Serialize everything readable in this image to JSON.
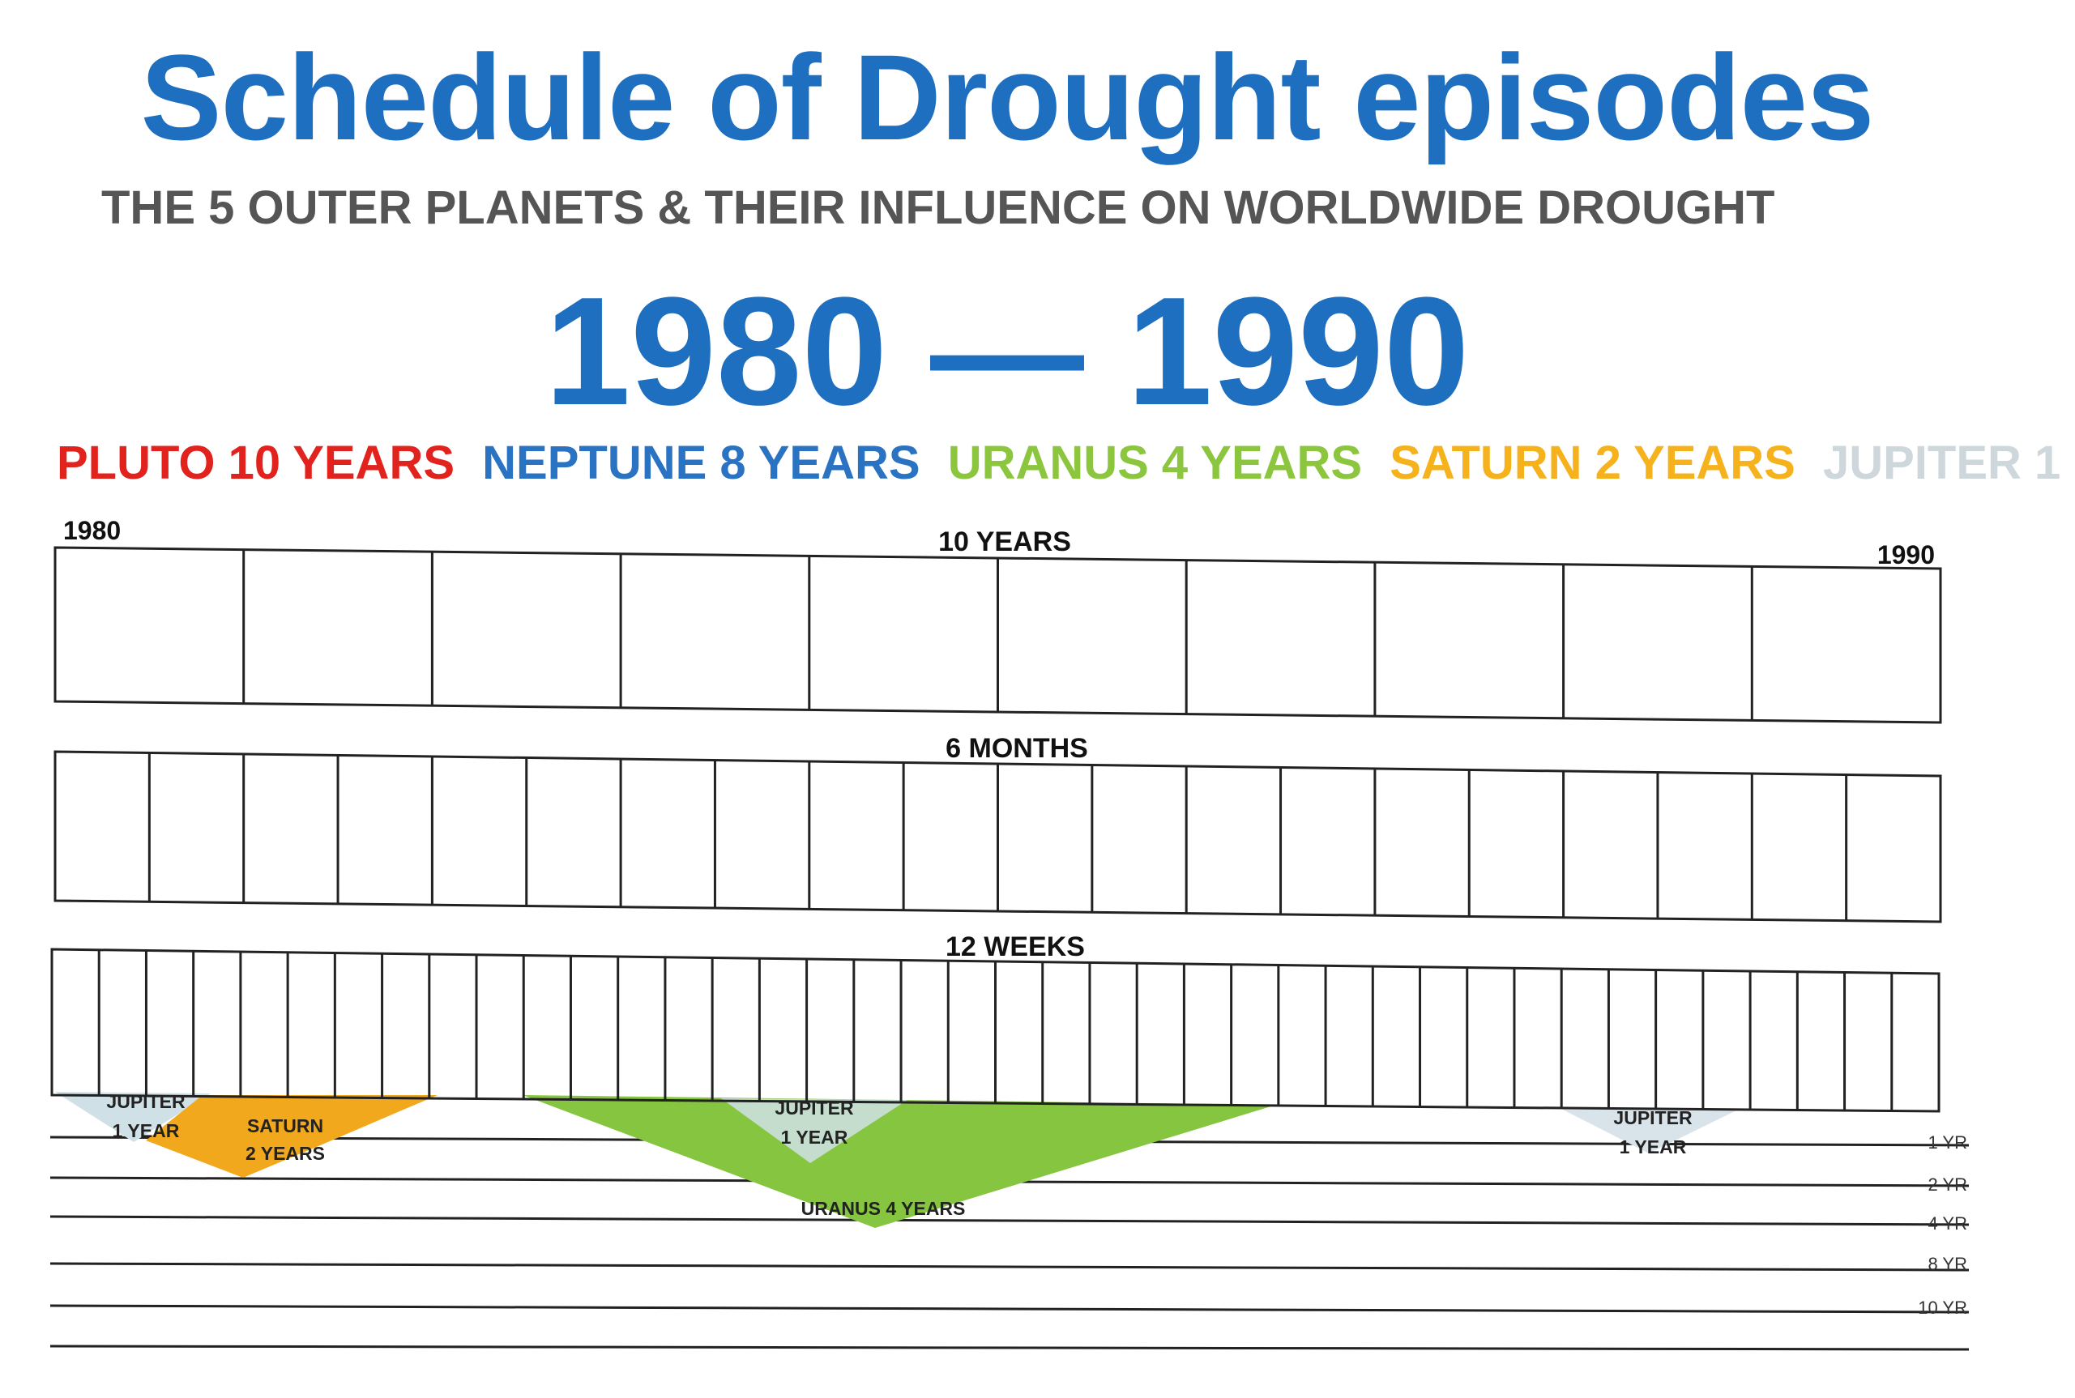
{
  "title": "Schedule of Drought episodes",
  "subtitle": "THE 5 OUTER PLANETS & THEIR INFLUENCE ON WORLDWIDE DROUGHT",
  "years_range": "1980 — 1990",
  "legend": [
    {
      "label": "PLUTO 10 YEARS",
      "color": "#e2221d"
    },
    {
      "label": "NEPTUNE 8 YEARS",
      "color": "#2a72c2"
    },
    {
      "label": "URANUS 4 YEARS",
      "color": "#8cc63f"
    },
    {
      "label": "SATURN 2 YEARS",
      "color": "#f6b21d"
    },
    {
      "label": "JUPITER 1",
      "color": "#cdd7dc"
    }
  ],
  "timeline": {
    "start_label": "1980",
    "end_label": "1990",
    "rows": [
      {
        "label": "10  YEARS",
        "cells": 10
      },
      {
        "label": "6 MONTHS",
        "cells": 20
      },
      {
        "label": "12 WEEKS",
        "cells": 40
      }
    ]
  },
  "scale_labels": [
    "1 YR",
    "2 YR",
    "4 YR",
    "8 YR",
    "10 YR"
  ],
  "episodes": [
    {
      "planet": "Jupiter",
      "line1": "JUPITER",
      "line2": "1 YEAR",
      "color": "#cfe0e6"
    },
    {
      "planet": "Saturn",
      "line1": "SATURN",
      "line2": "2 YEARS",
      "color": "#f2a81c"
    },
    {
      "planet": "Uranus",
      "line1": "URANUS 4 YEARS",
      "line2": "",
      "color": "#86c540"
    },
    {
      "planet": "Jupiter",
      "line1": "JUPITER",
      "line2": "1 YEAR",
      "color": "#cfe0e6"
    },
    {
      "planet": "Jupiter",
      "line1": "JUPITER",
      "line2": "1 YEAR",
      "color": "#d8e4ea"
    }
  ]
}
